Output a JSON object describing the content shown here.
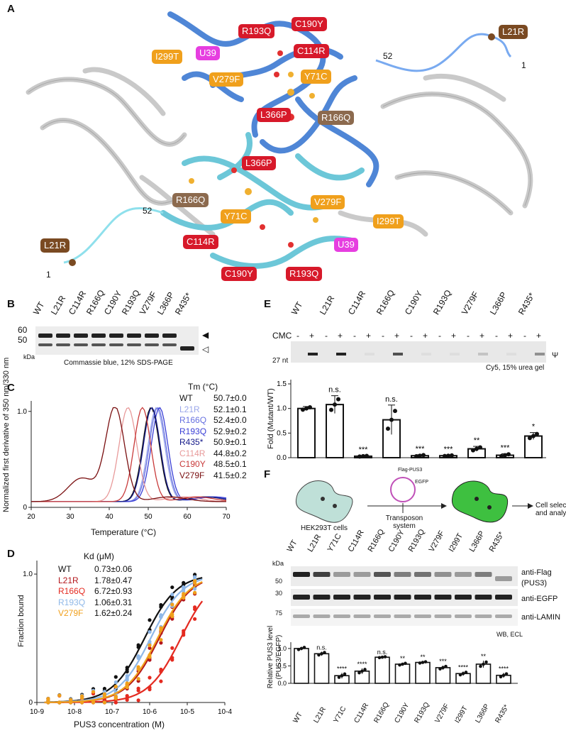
{
  "panels": {
    "a": "A",
    "b": "B",
    "c": "C",
    "d": "D",
    "e": "E",
    "f": "F"
  },
  "panelA": {
    "labels": {
      "r193q_top": "R193Q",
      "c190y_top": "C190Y",
      "c114r_top": "C114R",
      "i299t_top": "I299T",
      "u39_top": "U39",
      "v279f_top": "V279F",
      "y71c_top": "Y71C",
      "l366p_top": "L366P",
      "r166q_top": "R166Q",
      "l21r_top": "L21R",
      "l366p_bot": "L366P",
      "r166q_bot": "R166Q",
      "y71c_bot": "Y71C",
      "v279f_bot": "V279F",
      "i299t_bot": "I299T",
      "c114r_bot": "C114R",
      "u39_bot": "U39",
      "c190y_bot": "C190Y",
      "r193q_bot": "R193Q",
      "l21r_bot": "L21R"
    },
    "numbers": {
      "n52_top": "52",
      "n1_top": "1",
      "n52_bot": "52",
      "n1_bot": "1"
    },
    "colors": {
      "chainA": "#4f86d6",
      "chainB": "#6cc7d8",
      "rna": "#bfbfbf"
    }
  },
  "panelB": {
    "lanes": [
      "WT",
      "L21R",
      "C114R",
      "R166Q",
      "C190Y",
      "R193Q",
      "V279F",
      "L366P",
      "R435*"
    ],
    "mw": [
      "60",
      "50"
    ],
    "unit": "kDa",
    "caption": "Commassie blue, 12% SDS-PAGE"
  },
  "panelC": {
    "legend_title": "Tm (°C)",
    "legend": [
      {
        "name": "WT",
        "tm": "50.7±0.0",
        "color": "#111111"
      },
      {
        "name": "L21R",
        "tm": "52.1±0.1",
        "color": "#9aa6ea"
      },
      {
        "name": "R166Q",
        "tm": "52.4±0.0",
        "color": "#6670e0"
      },
      {
        "name": "R193Q",
        "tm": "52.9±0.2",
        "color": "#3a3fd6"
      },
      {
        "name": "R435*",
        "tm": "50.9±0.1",
        "color": "#151a8a"
      },
      {
        "name": "C114R",
        "tm": "44.8±0.2",
        "color": "#e89a9a"
      },
      {
        "name": "C190Y",
        "tm": "48.5±0.1",
        "color": "#c83a3a"
      },
      {
        "name": "V279F",
        "tm": "41.5±0.2",
        "color": "#7a0f10"
      }
    ],
    "chart_data": {
      "type": "line",
      "xlabel": "Temperature (°C)",
      "ylabel": "Normalized first derivative of 350 nm/330 nm",
      "xlim": [
        20,
        70
      ],
      "ylim": [
        0,
        1.05
      ],
      "xticks": [
        "20",
        "30",
        "40",
        "50",
        "60",
        "70"
      ],
      "yticks": [
        "0",
        "1.0"
      ],
      "series": [
        {
          "name": "WT",
          "peak": 50.7,
          "width": 3.0,
          "shoulder": 0.0
        },
        {
          "name": "L21R",
          "peak": 52.1,
          "width": 3.0,
          "shoulder": 0.0
        },
        {
          "name": "R166Q",
          "peak": 52.4,
          "width": 3.0,
          "shoulder": 0.0
        },
        {
          "name": "R193Q",
          "peak": 52.9,
          "width": 3.0,
          "shoulder": 0.0
        },
        {
          "name": "R435*",
          "peak": 50.9,
          "width": 3.0,
          "shoulder": 0.0
        },
        {
          "name": "C114R",
          "peak": 44.8,
          "width": 3.2,
          "shoulder": 0.0
        },
        {
          "name": "C190Y",
          "peak": 48.5,
          "width": 3.0,
          "shoulder": 0.0
        },
        {
          "name": "V279F",
          "peak": 41.5,
          "width": 3.4,
          "shoulder": 0.25
        }
      ]
    }
  },
  "panelD": {
    "legend_title": "Kd (μM)",
    "legend": [
      {
        "name": "WT",
        "kd": "0.73±0.06",
        "color": "#111111"
      },
      {
        "name": "L21R",
        "kd": "1.78±0.47",
        "color": "#b3161b"
      },
      {
        "name": "R166Q",
        "kd": "6.72±0.93",
        "color": "#e42a20"
      },
      {
        "name": "R193Q",
        "kd": "1.06±0.31",
        "color": "#8fb8e8"
      },
      {
        "name": "V279F",
        "kd": "1.62±0.24",
        "color": "#f0a01c"
      }
    ],
    "chart_data": {
      "type": "scatter",
      "xlabel": "PUS3 concentration (M)",
      "ylabel": "Fraction bound",
      "xscale": "log",
      "xlim": [
        -9,
        -4
      ],
      "ylim": [
        0,
        1.05
      ],
      "xticks": [
        "10-9",
        "10-8",
        "10-7",
        "10-6",
        "10-5",
        "10-4"
      ],
      "yticks": [
        "0",
        "1.0"
      ],
      "series": [
        {
          "name": "WT",
          "kd_uM": 0.73
        },
        {
          "name": "L21R",
          "kd_uM": 1.78
        },
        {
          "name": "R166Q",
          "kd_uM": 6.72
        },
        {
          "name": "R193Q",
          "kd_uM": 1.06
        },
        {
          "name": "V279F",
          "kd_uM": 1.62
        }
      ]
    }
  },
  "panelE": {
    "lanes": [
      "WT",
      "L21R",
      "C114R",
      "R166Q",
      "C190Y",
      "R193Q",
      "V279F",
      "L366P",
      "R435*"
    ],
    "cmc_label": "CMC",
    "minus": "-",
    "plus": "+",
    "mw": "27 nt",
    "psi": "Ψ",
    "caption": "Cy5, 15% urea gel",
    "chart_data": {
      "type": "bar",
      "categories": [
        "WT",
        "L21R",
        "C114R",
        "R166Q",
        "C190Y",
        "R193Q",
        "V279F",
        "L366P",
        "R435*"
      ],
      "values": [
        1.0,
        1.08,
        0.03,
        0.77,
        0.04,
        0.04,
        0.18,
        0.05,
        0.44
      ],
      "errors": [
        0.04,
        0.18,
        0.01,
        0.3,
        0.02,
        0.01,
        0.05,
        0.03,
        0.07
      ],
      "significance": [
        "",
        "n.s.",
        "***",
        "n.s.",
        "***",
        "***",
        "**",
        "***",
        "*"
      ],
      "ylabel": "Fold (Mutant/WT)",
      "ylim": [
        0,
        1.5
      ],
      "yticks": [
        "0.0",
        "0.5",
        "1.0",
        "1.5"
      ]
    }
  },
  "panelF": {
    "schematic": {
      "cells": "HEK293T cells",
      "plasmid_a": "Flag-PUS3",
      "plasmid_b": "EGFP",
      "arrow": "Transposon system",
      "result": "Cell selection and analysis"
    },
    "lanes": [
      "WT",
      "L21R",
      "Y71C",
      "C114R",
      "R166Q",
      "C190Y",
      "R193Q",
      "V279F",
      "I299T",
      "L366P",
      "R435*"
    ],
    "unit": "kDa",
    "blots": [
      {
        "mw": "50",
        "label": "anti-Flag (PUS3)"
      },
      {
        "mw": "30",
        "label": "anti-EGFP"
      },
      {
        "mw": "75",
        "label": "anti-LAMIN"
      }
    ],
    "wb_caption": "WB, ECL",
    "chart_data": {
      "type": "bar",
      "categories": [
        "WT",
        "L21R",
        "Y71C",
        "C114R",
        "R166Q",
        "C190Y",
        "R193Q",
        "V279F",
        "I299T",
        "L366P",
        "R435*"
      ],
      "values": [
        1.0,
        0.85,
        0.22,
        0.35,
        0.75,
        0.55,
        0.6,
        0.45,
        0.28,
        0.55,
        0.23
      ],
      "errors": [
        0.05,
        0.06,
        0.08,
        0.08,
        0.02,
        0.04,
        0.03,
        0.06,
        0.06,
        0.1,
        0.07
      ],
      "significance": [
        "",
        "n.s.",
        "****",
        "****",
        "n.s.",
        "**",
        "**",
        "***",
        "****",
        "**",
        "****"
      ],
      "ylabel": "Relative PUS3 level (PUS3/EGFP)",
      "ylim": [
        0,
        1.1
      ],
      "yticks": [
        "0.0",
        "0.5",
        "1.0"
      ]
    }
  }
}
